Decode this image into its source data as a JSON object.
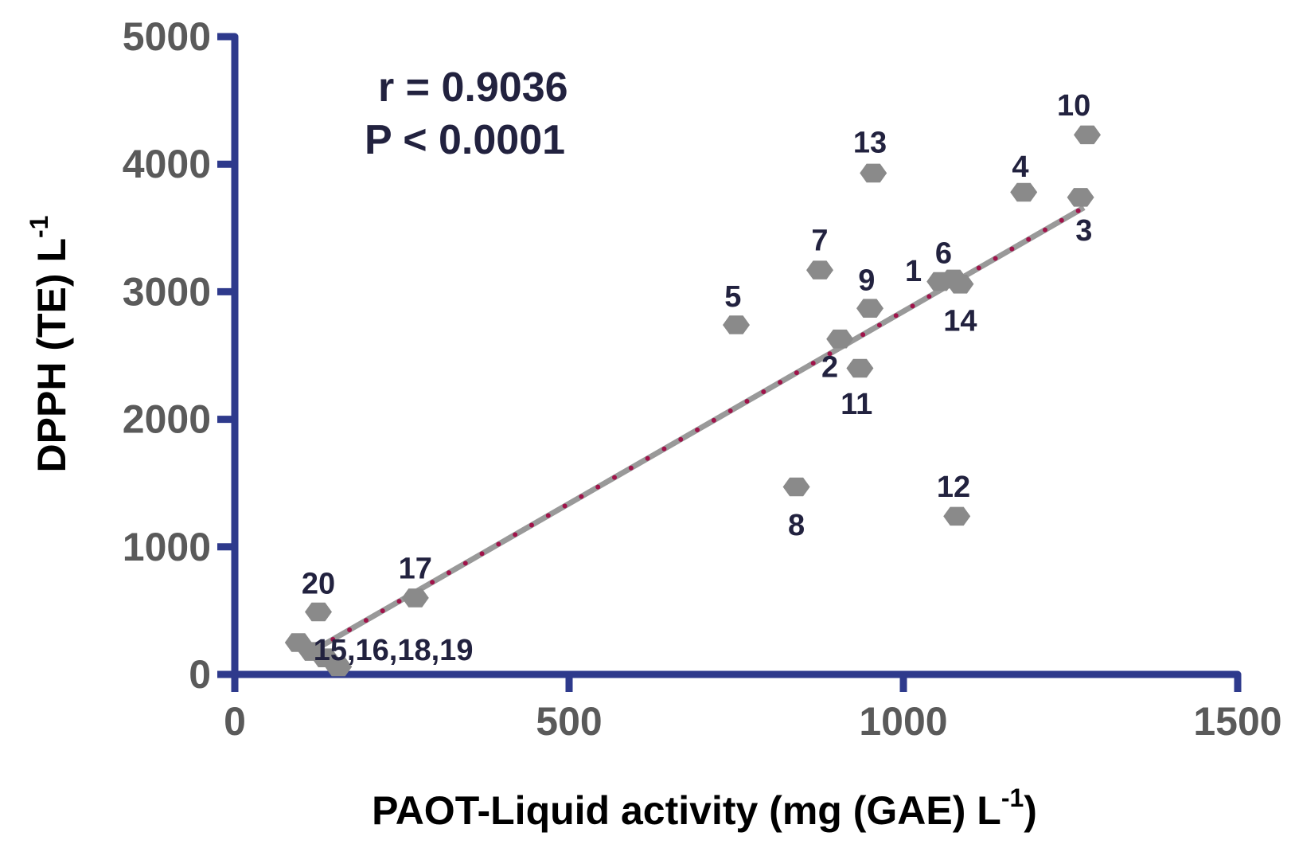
{
  "chart_data": {
    "type": "scatter",
    "xlabel": "PAOT-Liquid activity (mg (GAE) L",
    "xlabel_sup": "-1",
    "xlabel_end": ")",
    "ylabel": "DPPH (TE) L",
    "ylabel_sup": "-1",
    "xlim": [
      0,
      1500
    ],
    "ylim": [
      0,
      5000
    ],
    "x_ticks": [
      "0",
      "500",
      "1000",
      "1500"
    ],
    "y_ticks": [
      "0",
      "1000",
      "2000",
      "3000",
      "4000",
      "5000"
    ],
    "grid": false,
    "annotations": {
      "r": "r = 0.9036",
      "p": "P < 0.0001"
    },
    "trendline": {
      "x": [
        122,
        1270
      ],
      "y": [
        200,
        3660
      ]
    },
    "points": [
      {
        "label": "1",
        "x": 1055,
        "y": 3080
      },
      {
        "label": "2",
        "x": 905,
        "y": 2630
      },
      {
        "label": "3",
        "x": 1265,
        "y": 3740
      },
      {
        "label": "4",
        "x": 1180,
        "y": 3780
      },
      {
        "label": "5",
        "x": 750,
        "y": 2740
      },
      {
        "label": "6",
        "x": 1075,
        "y": 3100
      },
      {
        "label": "7",
        "x": 875,
        "y": 3170
      },
      {
        "label": "8",
        "x": 840,
        "y": 1470
      },
      {
        "label": "9",
        "x": 950,
        "y": 2870
      },
      {
        "label": "10",
        "x": 1275,
        "y": 4230
      },
      {
        "label": "11",
        "x": 935,
        "y": 2400
      },
      {
        "label": "12",
        "x": 1080,
        "y": 1240
      },
      {
        "label": "13",
        "x": 955,
        "y": 3930
      },
      {
        "label": "14",
        "x": 1085,
        "y": 3060
      },
      {
        "label": "15",
        "x": 95,
        "y": 250
      },
      {
        "label": "16",
        "x": 115,
        "y": 180
      },
      {
        "label": "17",
        "x": 270,
        "y": 600
      },
      {
        "label": "18",
        "x": 135,
        "y": 130
      },
      {
        "label": "19",
        "x": 155,
        "y": 60
      },
      {
        "label": "20",
        "x": 125,
        "y": 490
      }
    ],
    "point_labels": [
      {
        "text": "1",
        "x": 1015,
        "y": 3170
      },
      {
        "text": "2",
        "x": 890,
        "y": 2420
      },
      {
        "text": "3",
        "x": 1270,
        "y": 3490
      },
      {
        "text": "4",
        "x": 1175,
        "y": 3990
      },
      {
        "text": "5",
        "x": 745,
        "y": 2970
      },
      {
        "text": "6",
        "x": 1060,
        "y": 3310
      },
      {
        "text": "7",
        "x": 875,
        "y": 3410
      },
      {
        "text": "8",
        "x": 840,
        "y": 1180
      },
      {
        "text": "9",
        "x": 945,
        "y": 3100
      },
      {
        "text": "10",
        "x": 1255,
        "y": 4470
      },
      {
        "text": "11",
        "x": 930,
        "y": 2130
      },
      {
        "text": "12",
        "x": 1075,
        "y": 1480
      },
      {
        "text": "13",
        "x": 950,
        "y": 4180
      },
      {
        "text": "14",
        "x": 1085,
        "y": 2780
      },
      {
        "text": "15,16,18,19",
        "x": 237,
        "y": 200
      },
      {
        "text": "17",
        "x": 270,
        "y": 840
      },
      {
        "text": "20",
        "x": 125,
        "y": 720
      }
    ],
    "colors": {
      "axis": "#2e3a8c",
      "marker": "#8a8a8a",
      "trendline": "#999999",
      "trendline_dots": "#a0134a",
      "point_label": "#22223f",
      "tick_label": "#5a5a5a"
    }
  }
}
